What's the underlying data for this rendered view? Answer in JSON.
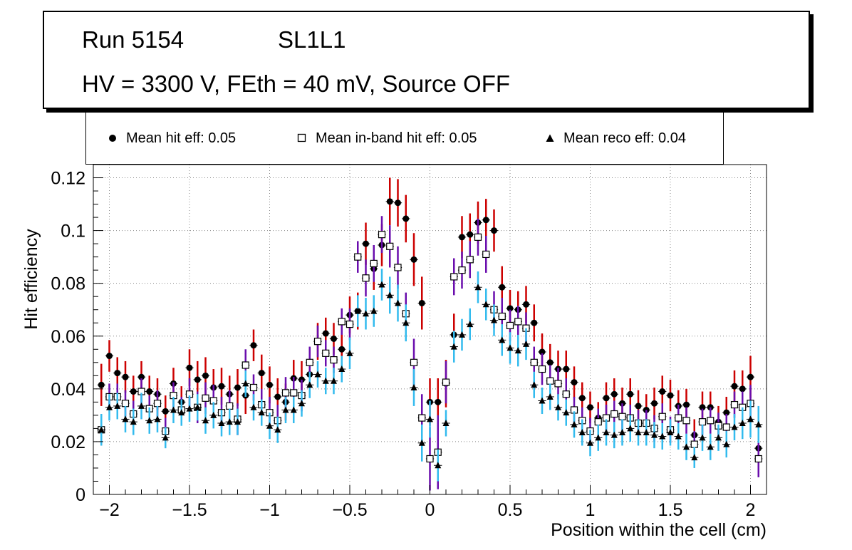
{
  "title": {
    "run": "Run 5154",
    "layer": "SL1L1",
    "conditions": "HV = 3300 V, FEth = 40 mV, Source OFF"
  },
  "legend": {
    "hit": "Mean hit  eff: 0.05",
    "inband": "Mean in-band hit eff: 0.05",
    "reco": "Mean reco eff: 0.04"
  },
  "colors": {
    "hit_err": "#cc0000",
    "inband_err": "#6a0dad",
    "reco_err": "#33bbee",
    "frame": "#000000",
    "grid": "#888888"
  },
  "chart_data": {
    "type": "scatter",
    "xlabel": "Position within the cell (cm)",
    "ylabel": "Hit efficiency",
    "xlim": [
      -2.1,
      2.1
    ],
    "ylim": [
      0,
      0.125
    ],
    "xticks": [
      -2,
      -1.5,
      -1,
      -0.5,
      0,
      0.5,
      1,
      1.5,
      2
    ],
    "xtick_labels": [
      "−2",
      "−1.5",
      "−1",
      "−0.5",
      "0",
      "0.5",
      "1",
      "1.5",
      "2"
    ],
    "yticks": [
      0,
      0.02,
      0.04,
      0.06,
      0.08,
      0.1,
      0.12
    ],
    "ytick_labels": [
      "0",
      "0.02",
      "0.04",
      "0.06",
      "0.08",
      "0.1",
      "0.12"
    ],
    "grid": true,
    "x": [
      -2.05,
      -2.0,
      -1.95,
      -1.9,
      -1.85,
      -1.8,
      -1.75,
      -1.7,
      -1.65,
      -1.6,
      -1.55,
      -1.5,
      -1.45,
      -1.4,
      -1.35,
      -1.3,
      -1.25,
      -1.2,
      -1.15,
      -1.1,
      -1.05,
      -1.0,
      -0.95,
      -0.9,
      -0.85,
      -0.8,
      -0.75,
      -0.7,
      -0.65,
      -0.6,
      -0.55,
      -0.5,
      -0.45,
      -0.4,
      -0.35,
      -0.3,
      -0.25,
      -0.2,
      -0.15,
      -0.1,
      -0.05,
      0.0,
      0.05,
      0.1,
      0.15,
      0.2,
      0.25,
      0.3,
      0.35,
      0.4,
      0.45,
      0.5,
      0.55,
      0.6,
      0.65,
      0.7,
      0.75,
      0.8,
      0.85,
      0.9,
      0.95,
      1.0,
      1.05,
      1.1,
      1.15,
      1.2,
      1.25,
      1.3,
      1.35,
      1.4,
      1.45,
      1.5,
      1.55,
      1.6,
      1.65,
      1.7,
      1.75,
      1.8,
      1.85,
      1.9,
      1.95,
      2.0,
      2.05
    ],
    "series": [
      {
        "name": "Mean hit  eff: 0.05",
        "marker": "circle",
        "values": [
          0.0415,
          0.0525,
          0.046,
          0.0445,
          0.039,
          0.0445,
          0.039,
          0.038,
          0.0315,
          0.042,
          0.035,
          0.048,
          0.0435,
          0.045,
          0.0405,
          0.041,
          0.038,
          0.0405,
          0.0375,
          0.0565,
          0.046,
          0.0415,
          0.037,
          0.035,
          0.044,
          0.0435,
          0.0455,
          0.058,
          0.061,
          0.059,
          0.055,
          0.068,
          0.0695,
          0.095,
          0.0855,
          0.0945,
          0.111,
          0.1105,
          0.1045,
          0.089,
          0.0725,
          0.035,
          0.035,
          0.042,
          0.0605,
          0.0975,
          0.0985,
          0.103,
          0.104,
          0.1,
          0.0785,
          0.0705,
          0.07,
          0.072,
          0.065,
          0.054,
          0.05,
          0.0475,
          0.0475,
          0.0425,
          0.0365,
          0.033,
          0.029,
          0.0365,
          0.038,
          0.0345,
          0.038,
          0.0335,
          0.032,
          0.0345,
          0.039,
          0.0375,
          0.0335,
          0.034,
          0.0225,
          0.033,
          0.033,
          0.0275,
          0.031,
          0.041,
          0.04,
          0.0445,
          0.0175
        ],
        "errors": [
          0.008,
          0.006,
          0.006,
          0.006,
          0.006,
          0.006,
          0.006,
          0.006,
          0.006,
          0.006,
          0.006,
          0.007,
          0.007,
          0.007,
          0.007,
          0.007,
          0.007,
          0.007,
          0.007,
          0.006,
          0.007,
          0.007,
          0.007,
          0.007,
          0.007,
          0.007,
          0.007,
          0.007,
          0.006,
          0.006,
          0.006,
          0.007,
          0.007,
          0.008,
          0.008,
          0.008,
          0.009,
          0.009,
          0.009,
          0.01,
          0.01,
          0.009,
          0.009,
          0.009,
          0.008,
          0.008,
          0.008,
          0.008,
          0.008,
          0.008,
          0.008,
          0.007,
          0.007,
          0.007,
          0.007,
          0.007,
          0.007,
          0.007,
          0.007,
          0.006,
          0.006,
          0.006,
          0.006,
          0.006,
          0.006,
          0.006,
          0.006,
          0.006,
          0.006,
          0.006,
          0.006,
          0.006,
          0.006,
          0.006,
          0.006,
          0.006,
          0.006,
          0.006,
          0.006,
          0.006,
          0.007,
          0.008,
          0.008
        ]
      },
      {
        "name": "Mean in-band hit eff: 0.05",
        "marker": "square-open",
        "values": [
          0.0245,
          0.037,
          0.037,
          0.0345,
          0.0305,
          0.039,
          0.0325,
          0.0345,
          0.024,
          0.0375,
          0.032,
          0.038,
          0.033,
          0.0365,
          0.0355,
          0.031,
          0.0335,
          0.0285,
          0.049,
          0.0405,
          0.034,
          0.031,
          0.028,
          0.0385,
          0.0385,
          0.0375,
          0.05,
          0.058,
          0.0535,
          0.051,
          0.0655,
          0.0645,
          0.09,
          0.082,
          0.0875,
          0.0985,
          0.094,
          0.086,
          0.0685,
          0.05,
          0.029,
          0.0135,
          0.016,
          0.0425,
          0.0825,
          0.085,
          0.089,
          0.0975,
          0.091,
          0.07,
          0.0675,
          0.064,
          0.0655,
          0.063,
          0.05,
          0.0475,
          0.043,
          0.042,
          0.038,
          0.032,
          0.028,
          0.024,
          0.0275,
          0.029,
          0.0305,
          0.0295,
          0.029,
          0.027,
          0.027,
          0.025,
          0.0295,
          0.0245,
          0.029,
          0.028,
          0.019,
          0.0275,
          0.028,
          0.026,
          0.0255,
          0.034,
          0.033,
          0.0345,
          0.0135
        ],
        "errors": [
          0.006,
          0.005,
          0.005,
          0.005,
          0.005,
          0.005,
          0.005,
          0.005,
          0.005,
          0.005,
          0.005,
          0.006,
          0.006,
          0.006,
          0.006,
          0.006,
          0.006,
          0.006,
          0.006,
          0.005,
          0.006,
          0.006,
          0.006,
          0.006,
          0.006,
          0.006,
          0.006,
          0.006,
          0.005,
          0.005,
          0.005,
          0.006,
          0.006,
          0.007,
          0.007,
          0.007,
          0.008,
          0.008,
          0.008,
          0.009,
          0.009,
          0.012,
          0.014,
          0.008,
          0.007,
          0.007,
          0.007,
          0.007,
          0.007,
          0.007,
          0.007,
          0.006,
          0.006,
          0.006,
          0.006,
          0.006,
          0.006,
          0.006,
          0.006,
          0.005,
          0.005,
          0.005,
          0.005,
          0.005,
          0.005,
          0.005,
          0.005,
          0.005,
          0.005,
          0.005,
          0.005,
          0.005,
          0.005,
          0.005,
          0.005,
          0.005,
          0.005,
          0.005,
          0.005,
          0.005,
          0.006,
          0.007,
          0.007
        ]
      },
      {
        "name": "Mean reco eff: 0.04",
        "marker": "triangle",
        "values": [
          0.0245,
          0.033,
          0.0335,
          0.0285,
          0.0275,
          0.0335,
          0.028,
          0.0285,
          0.0215,
          0.032,
          0.031,
          0.0325,
          0.033,
          0.028,
          0.03,
          0.027,
          0.0275,
          0.0275,
          0.042,
          0.033,
          0.031,
          0.026,
          0.0245,
          0.032,
          0.032,
          0.0345,
          0.0415,
          0.0455,
          0.043,
          0.043,
          0.0475,
          0.0535,
          0.0695,
          0.0685,
          0.0695,
          0.0795,
          0.0755,
          0.0725,
          0.065,
          0.0405,
          0.0195,
          0.0285,
          0.011,
          0.027,
          0.056,
          0.0605,
          0.0645,
          0.0785,
          0.072,
          0.066,
          0.0585,
          0.0555,
          0.0545,
          0.057,
          0.0415,
          0.0355,
          0.037,
          0.033,
          0.031,
          0.0265,
          0.0235,
          0.0195,
          0.0215,
          0.0235,
          0.0225,
          0.0235,
          0.025,
          0.0235,
          0.0235,
          0.0225,
          0.022,
          0.0235,
          0.022,
          0.018,
          0.014,
          0.0215,
          0.018,
          0.0215,
          0.019,
          0.0255,
          0.027,
          0.0285,
          0.0265
        ],
        "errors": [
          0.006,
          0.005,
          0.005,
          0.005,
          0.005,
          0.005,
          0.005,
          0.005,
          0.004,
          0.005,
          0.005,
          0.005,
          0.005,
          0.005,
          0.005,
          0.005,
          0.005,
          0.005,
          0.005,
          0.005,
          0.005,
          0.005,
          0.005,
          0.005,
          0.005,
          0.005,
          0.005,
          0.005,
          0.005,
          0.005,
          0.005,
          0.006,
          0.006,
          0.006,
          0.006,
          0.006,
          0.007,
          0.007,
          0.007,
          0.007,
          0.007,
          0.007,
          0.006,
          0.005,
          0.006,
          0.006,
          0.006,
          0.006,
          0.006,
          0.006,
          0.006,
          0.006,
          0.006,
          0.006,
          0.005,
          0.005,
          0.005,
          0.005,
          0.005,
          0.005,
          0.005,
          0.005,
          0.005,
          0.005,
          0.005,
          0.005,
          0.005,
          0.005,
          0.005,
          0.005,
          0.005,
          0.005,
          0.005,
          0.005,
          0.004,
          0.005,
          0.005,
          0.005,
          0.005,
          0.005,
          0.006,
          0.007,
          0.007
        ]
      }
    ]
  }
}
